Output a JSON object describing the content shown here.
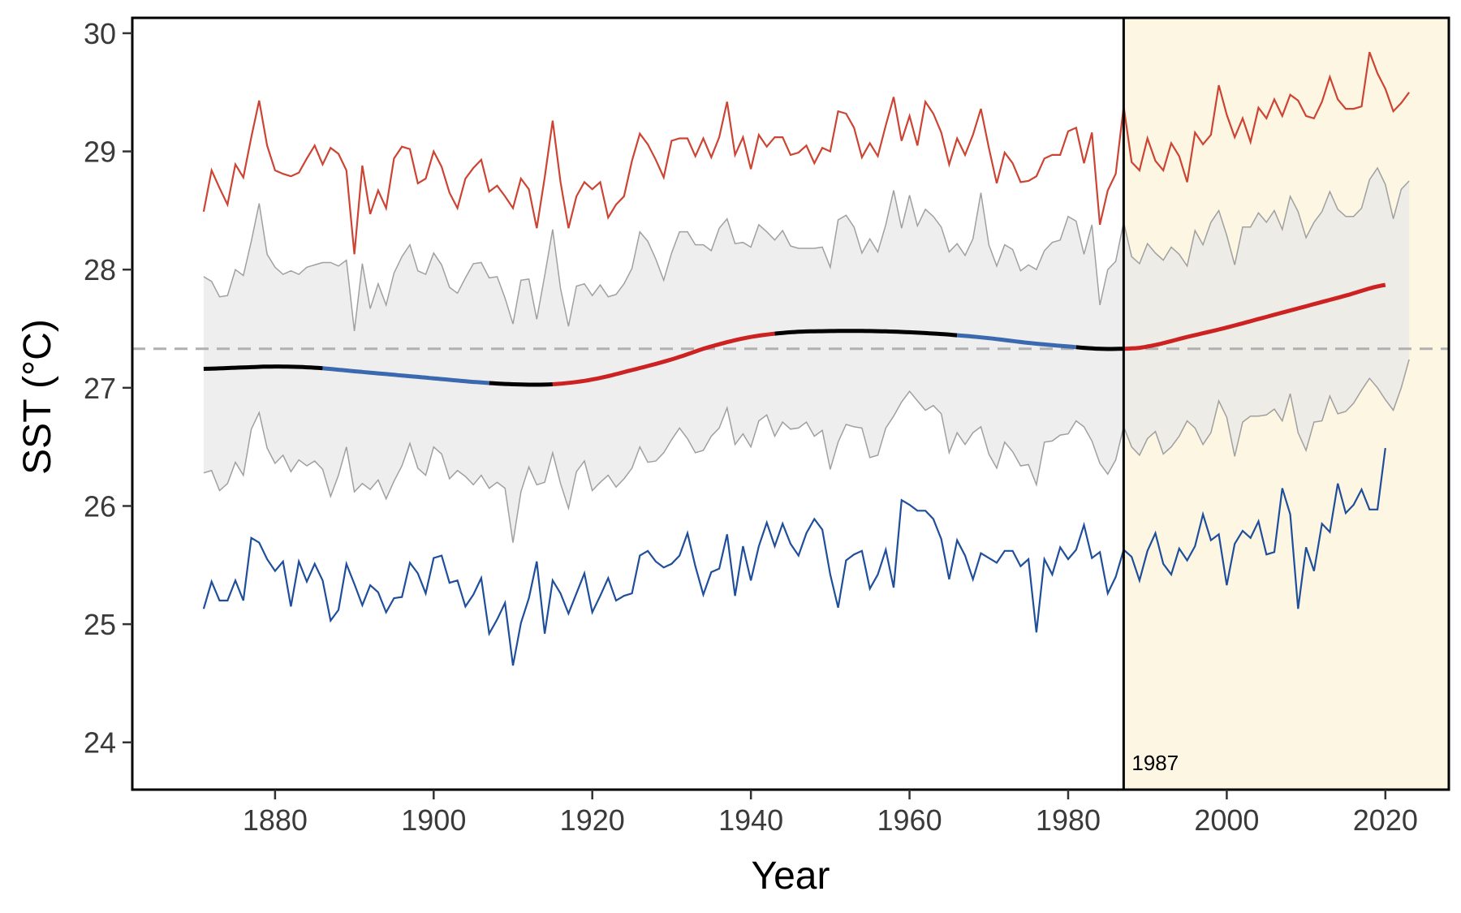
{
  "chart_data": {
    "type": "line",
    "xlabel": "Year",
    "ylabel": "SST (°C)",
    "xlim": [
      1862,
      2028
    ],
    "ylim": [
      23.6,
      30.13
    ],
    "x_ticks": [
      1880,
      1900,
      1920,
      1940,
      1960,
      1980,
      2000,
      2020
    ],
    "y_ticks": [
      24,
      25,
      26,
      27,
      28,
      29,
      30
    ],
    "grid": false,
    "reference_line": {
      "y": 27.33,
      "style": "dashed",
      "color": "#b0b0b0"
    },
    "breakpoint": {
      "year": 1987,
      "label": "1987",
      "shade_color": "#fdf6e3"
    },
    "colors": {
      "max": "#cc4433",
      "min": "#1f4e9a",
      "band_fill": "#e8e8e8",
      "band_line": "#a0a0a0",
      "trend_neutral": "#000000",
      "trend_warming": "#cc2222",
      "trend_cooling": "#3b69b0"
    },
    "series": [
      {
        "role": "max",
        "x_start": 1871,
        "values": [
          28.49,
          28.84,
          28.69,
          28.55,
          28.89,
          28.78,
          29.12,
          29.43,
          29.05,
          28.84,
          28.81,
          28.79,
          28.82,
          28.94,
          29.05,
          28.89,
          29.03,
          28.98,
          28.84,
          28.13,
          28.88,
          28.47,
          28.67,
          28.52,
          28.94,
          29.04,
          29.02,
          28.73,
          28.77,
          29.0,
          28.87,
          28.65,
          28.52,
          28.77,
          28.86,
          28.93,
          28.66,
          28.71,
          28.62,
          28.52,
          28.77,
          28.68,
          28.35,
          28.78,
          29.26,
          28.74,
          28.35,
          28.62,
          28.74,
          28.68,
          28.74,
          28.44,
          28.55,
          28.62,
          28.92,
          29.15,
          29.06,
          28.93,
          28.78,
          29.09,
          29.11,
          29.11,
          28.96,
          29.11,
          28.95,
          29.12,
          29.42,
          28.97,
          29.12,
          28.85,
          29.14,
          29.04,
          29.12,
          29.12,
          28.97,
          28.99,
          29.05,
          28.9,
          29.03,
          29.0,
          29.34,
          29.32,
          29.2,
          28.95,
          29.07,
          28.96,
          29.22,
          29.46,
          29.09,
          29.3,
          29.05,
          29.42,
          29.32,
          29.16,
          28.89,
          29.11,
          28.97,
          29.14,
          29.36,
          29.03,
          28.73,
          28.99,
          28.9,
          28.74,
          28.75,
          28.79,
          28.94,
          28.97,
          28.97,
          29.17,
          29.2,
          28.9,
          29.16,
          28.38,
          28.67,
          28.81,
          29.38,
          28.91,
          28.84,
          29.11,
          28.92,
          28.84,
          29.07,
          28.96,
          28.74,
          29.16,
          29.06,
          29.14,
          29.56,
          29.31,
          29.12,
          29.28,
          29.08,
          29.37,
          29.28,
          29.44,
          29.3,
          29.48,
          29.43,
          29.3,
          29.28,
          29.42,
          29.63,
          29.44,
          29.36,
          29.36,
          29.38,
          29.84,
          29.66,
          29.53,
          29.34,
          29.41,
          29.5
        ]
      },
      {
        "role": "upper_band",
        "x_start": 1871,
        "values": [
          27.94,
          27.9,
          27.77,
          27.78,
          28.0,
          27.95,
          28.24,
          28.56,
          28.13,
          28.02,
          27.96,
          27.99,
          27.96,
          28.02,
          28.04,
          28.06,
          28.06,
          28.03,
          28.08,
          27.48,
          28.05,
          27.67,
          27.88,
          27.7,
          27.97,
          28.11,
          28.21,
          27.99,
          27.96,
          28.14,
          28.04,
          27.85,
          27.8,
          27.93,
          28.05,
          28.06,
          27.93,
          27.94,
          27.76,
          27.54,
          27.91,
          27.92,
          27.58,
          27.95,
          28.34,
          27.84,
          27.52,
          27.86,
          27.88,
          27.78,
          27.87,
          27.77,
          27.79,
          27.88,
          28.01,
          28.32,
          28.24,
          28.09,
          27.91,
          28.14,
          28.32,
          28.32,
          28.21,
          28.21,
          28.16,
          28.35,
          28.43,
          28.22,
          28.23,
          28.19,
          28.38,
          28.32,
          28.25,
          28.33,
          28.2,
          28.18,
          28.18,
          28.18,
          28.19,
          28.02,
          28.42,
          28.46,
          28.36,
          28.14,
          28.26,
          28.15,
          28.38,
          28.67,
          28.35,
          28.63,
          28.37,
          28.51,
          28.45,
          28.36,
          28.15,
          28.22,
          28.12,
          28.26,
          28.65,
          28.21,
          28.03,
          28.21,
          28.17,
          27.99,
          28.04,
          28.0,
          28.16,
          28.23,
          28.25,
          28.45,
          28.41,
          28.13,
          28.38,
          27.7,
          28.0,
          28.07,
          28.4,
          28.11,
          28.05,
          28.22,
          28.14,
          28.08,
          28.19,
          28.13,
          28.03,
          28.33,
          28.21,
          28.4,
          28.5,
          28.29,
          28.04,
          28.36,
          28.36,
          28.48,
          28.4,
          28.5,
          28.34,
          28.62,
          28.49,
          28.27,
          28.4,
          28.49,
          28.66,
          28.51,
          28.45,
          28.45,
          28.52,
          28.76,
          28.86,
          28.72,
          28.43,
          28.68,
          28.75
        ]
      },
      {
        "role": "lower_band",
        "x_start": 1871,
        "values": [
          26.28,
          26.3,
          26.13,
          26.19,
          26.37,
          26.26,
          26.65,
          26.79,
          26.49,
          26.36,
          26.43,
          26.29,
          26.39,
          26.34,
          26.38,
          26.31,
          26.08,
          26.26,
          26.5,
          26.12,
          26.19,
          26.14,
          26.22,
          26.06,
          26.21,
          26.34,
          26.53,
          26.32,
          26.26,
          26.5,
          26.44,
          26.23,
          26.3,
          26.25,
          26.18,
          26.26,
          26.15,
          26.2,
          26.15,
          25.69,
          26.12,
          26.33,
          26.18,
          26.2,
          26.45,
          26.19,
          25.98,
          26.29,
          26.38,
          26.13,
          26.2,
          26.26,
          26.16,
          26.23,
          26.32,
          26.5,
          26.37,
          26.38,
          26.45,
          26.56,
          26.66,
          26.57,
          26.45,
          26.47,
          26.59,
          26.66,
          26.83,
          26.52,
          26.61,
          26.5,
          26.72,
          26.77,
          26.59,
          26.71,
          26.65,
          26.66,
          26.71,
          26.59,
          26.64,
          26.31,
          26.54,
          26.69,
          26.67,
          26.66,
          26.41,
          26.43,
          26.66,
          26.76,
          26.88,
          26.97,
          26.89,
          26.81,
          26.85,
          26.78,
          26.45,
          26.62,
          26.52,
          26.62,
          26.67,
          26.44,
          26.32,
          26.54,
          26.46,
          26.34,
          26.35,
          26.18,
          26.54,
          26.55,
          26.6,
          26.61,
          26.72,
          26.67,
          26.55,
          26.36,
          26.27,
          26.39,
          26.67,
          26.5,
          26.43,
          26.57,
          26.63,
          26.44,
          26.5,
          26.59,
          26.72,
          26.66,
          26.52,
          26.62,
          26.89,
          26.75,
          26.42,
          26.71,
          26.76,
          26.76,
          26.77,
          26.82,
          26.72,
          26.95,
          26.62,
          26.47,
          26.71,
          26.72,
          26.93,
          26.78,
          26.8,
          26.87,
          26.98,
          27.08,
          27.0,
          26.9,
          26.81,
          27.0,
          27.24
        ]
      },
      {
        "role": "min",
        "x_start": 1871,
        "values": [
          25.13,
          25.36,
          25.2,
          25.2,
          25.37,
          25.2,
          25.73,
          25.69,
          25.55,
          25.45,
          25.53,
          25.15,
          25.53,
          25.36,
          25.51,
          25.37,
          25.03,
          25.12,
          25.51,
          25.34,
          25.16,
          25.33,
          25.27,
          25.1,
          25.22,
          25.23,
          25.52,
          25.43,
          25.26,
          25.56,
          25.58,
          25.35,
          25.37,
          25.15,
          25.25,
          25.39,
          24.92,
          25.04,
          25.18,
          24.65,
          25.01,
          25.22,
          25.53,
          24.92,
          25.37,
          25.26,
          25.09,
          25.26,
          25.43,
          25.1,
          25.24,
          25.39,
          25.2,
          25.24,
          25.26,
          25.58,
          25.62,
          25.53,
          25.48,
          25.51,
          25.58,
          25.77,
          25.49,
          25.25,
          25.44,
          25.47,
          25.76,
          25.24,
          25.66,
          25.37,
          25.66,
          25.86,
          25.66,
          25.85,
          25.68,
          25.58,
          25.77,
          25.89,
          25.8,
          25.42,
          25.14,
          25.54,
          25.59,
          25.62,
          25.3,
          25.42,
          25.63,
          25.31,
          26.05,
          26.01,
          25.96,
          25.96,
          25.89,
          25.72,
          25.38,
          25.71,
          25.58,
          25.38,
          25.6,
          25.56,
          25.52,
          25.62,
          25.62,
          25.49,
          25.55,
          24.93,
          25.55,
          25.42,
          25.65,
          25.55,
          25.63,
          25.84,
          25.56,
          25.61,
          25.26,
          25.4,
          25.63,
          25.57,
          25.37,
          25.62,
          25.77,
          25.51,
          25.42,
          25.64,
          25.54,
          25.66,
          25.93,
          25.71,
          25.76,
          25.33,
          25.68,
          25.79,
          25.73,
          25.87,
          25.59,
          25.61,
          26.15,
          25.93,
          25.13,
          25.65,
          25.45,
          25.85,
          25.78,
          26.19,
          25.94,
          26.01,
          26.14,
          25.97,
          25.97,
          26.49
        ]
      },
      {
        "role": "trend",
        "points": [
          [
            1871,
            27.16
          ],
          [
            1875,
            27.17
          ],
          [
            1880,
            27.18
          ],
          [
            1885,
            27.17
          ],
          [
            1890,
            27.14
          ],
          [
            1895,
            27.11
          ],
          [
            1900,
            27.08
          ],
          [
            1905,
            27.05
          ],
          [
            1910,
            27.03
          ],
          [
            1915,
            27.03
          ],
          [
            1920,
            27.07
          ],
          [
            1925,
            27.15
          ],
          [
            1930,
            27.24
          ],
          [
            1935,
            27.35
          ],
          [
            1940,
            27.43
          ],
          [
            1945,
            27.47
          ],
          [
            1950,
            27.48
          ],
          [
            1955,
            27.48
          ],
          [
            1960,
            27.47
          ],
          [
            1965,
            27.45
          ],
          [
            1970,
            27.42
          ],
          [
            1975,
            27.38
          ],
          [
            1980,
            27.35
          ],
          [
            1984,
            27.33
          ],
          [
            1987,
            27.33
          ]
        ],
        "segments": [
          {
            "start": 1871,
            "end": 1886,
            "trend": "neutral"
          },
          {
            "start": 1886,
            "end": 1907,
            "trend": "cooling"
          },
          {
            "start": 1907,
            "end": 1915,
            "trend": "neutral"
          },
          {
            "start": 1915,
            "end": 1943,
            "trend": "warming"
          },
          {
            "start": 1943,
            "end": 1966,
            "trend": "neutral"
          },
          {
            "start": 1966,
            "end": 1981,
            "trend": "cooling"
          },
          {
            "start": 1981,
            "end": 1987,
            "trend": "neutral"
          }
        ]
      },
      {
        "role": "trend_post",
        "points": [
          [
            1987,
            27.33
          ],
          [
            1990,
            27.35
          ],
          [
            1995,
            27.43
          ],
          [
            2000,
            27.51
          ],
          [
            2005,
            27.6
          ],
          [
            2010,
            27.69
          ],
          [
            2015,
            27.78
          ],
          [
            2020,
            27.87
          ]
        ],
        "trend": "warming"
      }
    ]
  }
}
